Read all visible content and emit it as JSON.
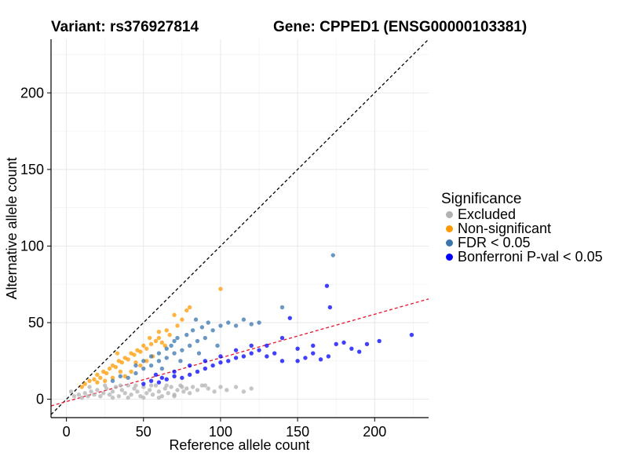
{
  "header": {
    "variant": "Variant: rs376927814",
    "gene": "Gene: CPPED1 (ENSG00000103381)"
  },
  "legend": {
    "title": "Significance",
    "items": [
      {
        "label": "Excluded",
        "color": "#b2b2b2"
      },
      {
        "label": "Non-significant",
        "color": "#ff9900"
      },
      {
        "label": "FDR < 0.05",
        "color": "#3a75ad"
      },
      {
        "label": "Bonferroni P-val < 0.05",
        "color": "#0000ff"
      }
    ]
  },
  "chart_data": {
    "type": "scatter",
    "xlabel": "Reference allele count",
    "ylabel": "Alternative allele count",
    "xlim": [
      -10,
      235
    ],
    "ylim": [
      -12,
      235
    ],
    "xticks": [
      0,
      50,
      100,
      150,
      200
    ],
    "yticks": [
      0,
      50,
      100,
      150,
      200
    ],
    "grid": true,
    "reference_lines": [
      {
        "name": "identity",
        "slope": 1,
        "intercept": 0,
        "color": "#000000",
        "style": "dashed"
      },
      {
        "name": "fit",
        "slope": 0.285,
        "intercept": -1.5,
        "color": "#e8112d",
        "style": "dashed"
      }
    ],
    "series": [
      {
        "name": "Excluded",
        "color": "#b2b2b2",
        "points": [
          [
            5,
            2
          ],
          [
            8,
            3
          ],
          [
            10,
            1
          ],
          [
            12,
            4
          ],
          [
            14,
            2
          ],
          [
            16,
            5
          ],
          [
            18,
            3
          ],
          [
            20,
            6
          ],
          [
            22,
            2
          ],
          [
            24,
            4
          ],
          [
            26,
            7
          ],
          [
            28,
            3
          ],
          [
            30,
            5
          ],
          [
            32,
            8
          ],
          [
            34,
            2
          ],
          [
            36,
            6
          ],
          [
            38,
            4
          ],
          [
            40,
            9
          ],
          [
            42,
            3
          ],
          [
            44,
            7
          ],
          [
            46,
            5
          ],
          [
            48,
            2
          ],
          [
            50,
            8
          ],
          [
            52,
            4
          ],
          [
            54,
            6
          ],
          [
            56,
            3
          ],
          [
            58,
            9
          ],
          [
            60,
            5
          ],
          [
            62,
            2
          ],
          [
            64,
            7
          ],
          [
            66,
            4
          ],
          [
            68,
            8
          ],
          [
            70,
            3
          ],
          [
            72,
            6
          ],
          [
            74,
            9
          ],
          [
            76,
            5
          ],
          [
            78,
            7
          ],
          [
            80,
            4
          ],
          [
            82,
            8
          ],
          [
            85,
            6
          ],
          [
            88,
            9
          ],
          [
            92,
            7
          ],
          [
            96,
            5
          ],
          [
            100,
            8
          ],
          [
            104,
            6
          ],
          [
            110,
            8
          ],
          [
            115,
            5
          ],
          [
            120,
            7
          ],
          [
            15,
            8
          ],
          [
            25,
            9
          ],
          [
            35,
            9
          ],
          [
            45,
            9
          ],
          [
            55,
            9
          ],
          [
            65,
            9
          ],
          [
            75,
            8
          ],
          [
            90,
            9
          ],
          [
            30,
            1
          ],
          [
            40,
            1
          ],
          [
            50,
            1
          ],
          [
            60,
            1
          ],
          [
            70,
            2
          ],
          [
            3,
            5
          ]
        ]
      },
      {
        "name": "Non-significant",
        "color": "#ff9900",
        "points": [
          [
            10,
            8
          ],
          [
            12,
            10
          ],
          [
            15,
            12
          ],
          [
            18,
            13
          ],
          [
            20,
            16
          ],
          [
            22,
            14
          ],
          [
            24,
            18
          ],
          [
            26,
            17
          ],
          [
            28,
            20
          ],
          [
            30,
            22
          ],
          [
            32,
            21
          ],
          [
            34,
            25
          ],
          [
            35,
            18
          ],
          [
            36,
            24
          ],
          [
            38,
            27
          ],
          [
            40,
            26
          ],
          [
            42,
            30
          ],
          [
            44,
            29
          ],
          [
            45,
            24
          ],
          [
            46,
            32
          ],
          [
            48,
            31
          ],
          [
            50,
            35
          ],
          [
            52,
            33
          ],
          [
            55,
            36
          ],
          [
            58,
            38
          ],
          [
            60,
            40
          ],
          [
            62,
            37
          ],
          [
            65,
            45
          ],
          [
            67,
            42
          ],
          [
            70,
            55
          ],
          [
            75,
            52
          ],
          [
            80,
            60
          ],
          [
            100,
            72
          ],
          [
            38,
            15
          ],
          [
            42,
            18
          ],
          [
            48,
            22
          ],
          [
            52,
            25
          ],
          [
            56,
            28
          ],
          [
            30,
            14
          ],
          [
            25,
            12
          ],
          [
            20,
            11
          ],
          [
            54,
            40
          ],
          [
            60,
            44
          ],
          [
            72,
            48
          ],
          [
            78,
            58
          ],
          [
            64,
            35
          ],
          [
            33,
            30
          ]
        ]
      },
      {
        "name": "FDR < 0.05",
        "color": "#3a75ad",
        "points": [
          [
            30,
            12
          ],
          [
            35,
            15
          ],
          [
            40,
            14
          ],
          [
            45,
            17
          ],
          [
            50,
            20
          ],
          [
            55,
            22
          ],
          [
            60,
            25
          ],
          [
            65,
            27
          ],
          [
            70,
            30
          ],
          [
            75,
            32
          ],
          [
            80,
            35
          ],
          [
            85,
            38
          ],
          [
            90,
            40
          ],
          [
            95,
            45
          ],
          [
            100,
            48
          ],
          [
            105,
            50
          ],
          [
            110,
            48
          ],
          [
            115,
            52
          ],
          [
            120,
            49
          ],
          [
            125,
            50
          ],
          [
            60,
            30
          ],
          [
            68,
            35
          ],
          [
            72,
            40
          ],
          [
            78,
            42
          ],
          [
            82,
            45
          ],
          [
            88,
            47
          ],
          [
            92,
            50
          ],
          [
            70,
            38
          ],
          [
            65,
            33
          ],
          [
            55,
            28
          ],
          [
            50,
            25
          ],
          [
            45,
            22
          ],
          [
            62,
            20
          ],
          [
            74,
            25
          ],
          [
            86,
            30
          ],
          [
            98,
            35
          ],
          [
            173,
            94
          ],
          [
            140,
            60
          ],
          [
            84,
            52
          ]
        ]
      },
      {
        "name": "Bonferroni P-val < 0.05",
        "color": "#0000ff",
        "points": [
          [
            50,
            10
          ],
          [
            55,
            12
          ],
          [
            60,
            11
          ],
          [
            65,
            13
          ],
          [
            70,
            15
          ],
          [
            75,
            14
          ],
          [
            80,
            16
          ],
          [
            85,
            18
          ],
          [
            90,
            20
          ],
          [
            95,
            22
          ],
          [
            100,
            24
          ],
          [
            105,
            25
          ],
          [
            110,
            27
          ],
          [
            115,
            28
          ],
          [
            120,
            30
          ],
          [
            125,
            32
          ],
          [
            130,
            35
          ],
          [
            135,
            30
          ],
          [
            140,
            25
          ],
          [
            145,
            53
          ],
          [
            150,
            33
          ],
          [
            155,
            27
          ],
          [
            160,
            35
          ],
          [
            165,
            26
          ],
          [
            170,
            28
          ],
          [
            180,
            37
          ],
          [
            190,
            31
          ],
          [
            203,
            38
          ],
          [
            224,
            42
          ],
          [
            169,
            74
          ],
          [
            171,
            60
          ],
          [
            175,
            36
          ],
          [
            185,
            33
          ],
          [
            195,
            36
          ],
          [
            160,
            30
          ],
          [
            150,
            25
          ],
          [
            140,
            40
          ],
          [
            130,
            28
          ],
          [
            120,
            35
          ],
          [
            110,
            32
          ],
          [
            100,
            28
          ],
          [
            90,
            25
          ],
          [
            80,
            22
          ],
          [
            70,
            18
          ],
          [
            62,
            14
          ],
          [
            58,
            16
          ]
        ]
      }
    ]
  }
}
